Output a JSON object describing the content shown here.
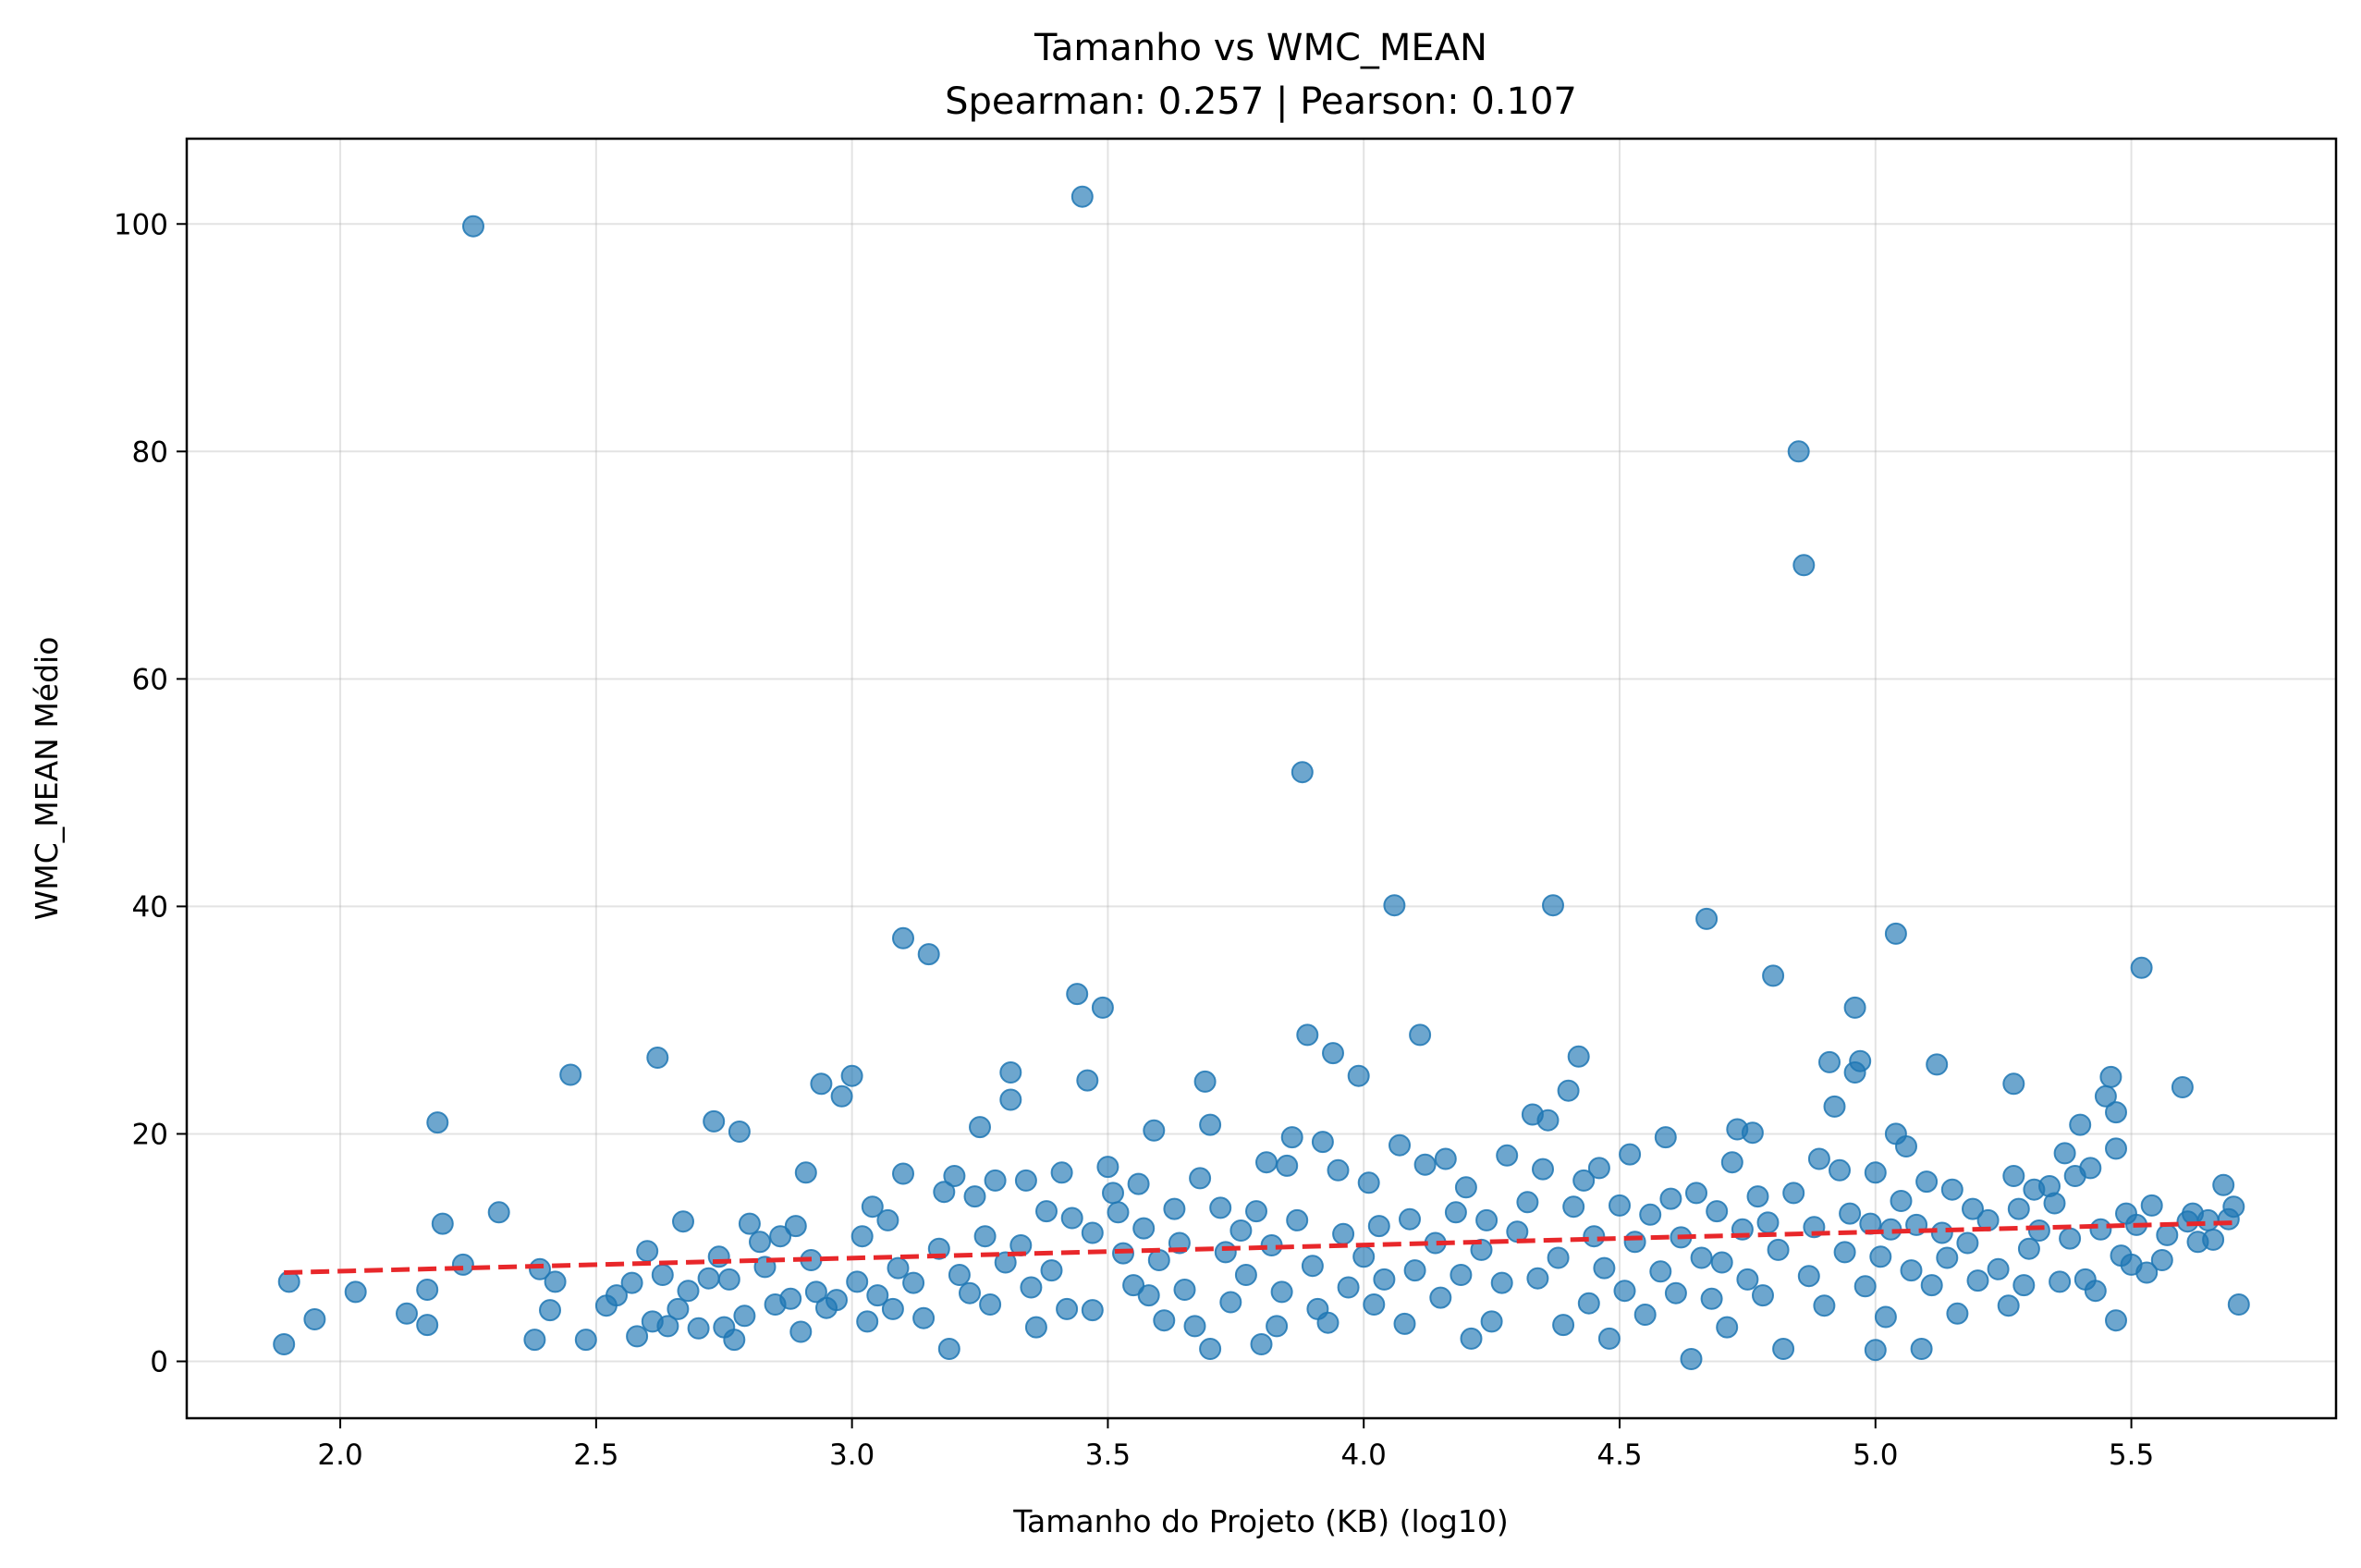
{
  "chart_data": {
    "type": "scatter",
    "title": "Tamanho vs WMC_MEAN",
    "subtitle": "Spearman: 0.257 | Pearson: 0.107",
    "xlabel": "Tamanho do Projeto (KB) (log10)",
    "ylabel": "WMC_MEAN Médio",
    "xlim": [
      1.7,
      5.9
    ],
    "ylim": [
      -5,
      107.5
    ],
    "x_ticks": [
      2.0,
      2.5,
      3.0,
      3.5,
      4.0,
      4.5,
      5.0,
      5.5
    ],
    "y_ticks": [
      0,
      20,
      40,
      60,
      80,
      100
    ],
    "x_tick_labels": [
      "2.0",
      "2.5",
      "3.0",
      "3.5",
      "4.0",
      "4.5",
      "5.0",
      "5.5"
    ],
    "y_tick_labels": [
      "0",
      "20",
      "40",
      "60",
      "80",
      "100"
    ],
    "grid": true,
    "colors": {
      "points": "#1f77b4",
      "trend": "#e8272a"
    },
    "series": [
      {
        "kind": "points",
        "points": [
          [
            1.89,
            1.5
          ],
          [
            1.9,
            7.0
          ],
          [
            1.95,
            3.7
          ],
          [
            2.03,
            6.1
          ],
          [
            2.13,
            4.2
          ],
          [
            2.17,
            3.2
          ],
          [
            2.17,
            6.3
          ],
          [
            2.19,
            21.0
          ],
          [
            2.2,
            12.1
          ],
          [
            2.24,
            8.5
          ],
          [
            2.26,
            99.8
          ],
          [
            2.31,
            13.1
          ],
          [
            2.38,
            1.9
          ],
          [
            2.39,
            8.1
          ],
          [
            2.41,
            4.5
          ],
          [
            2.42,
            7.0
          ],
          [
            2.45,
            25.2
          ],
          [
            2.48,
            1.9
          ],
          [
            2.52,
            4.9
          ],
          [
            2.54,
            5.8
          ],
          [
            2.57,
            6.9
          ],
          [
            2.58,
            2.2
          ],
          [
            2.6,
            9.7
          ],
          [
            2.61,
            3.5
          ],
          [
            2.62,
            26.7
          ],
          [
            2.63,
            7.6
          ],
          [
            2.64,
            3.1
          ],
          [
            2.66,
            4.6
          ],
          [
            2.67,
            12.3
          ],
          [
            2.68,
            6.2
          ],
          [
            2.7,
            2.9
          ],
          [
            2.72,
            7.3
          ],
          [
            2.73,
            21.1
          ],
          [
            2.74,
            9.2
          ],
          [
            2.75,
            3.0
          ],
          [
            2.76,
            7.2
          ],
          [
            2.77,
            1.9
          ],
          [
            2.78,
            20.2
          ],
          [
            2.79,
            4.0
          ],
          [
            2.8,
            12.1
          ],
          [
            2.82,
            10.5
          ],
          [
            2.83,
            8.3
          ],
          [
            2.85,
            5.0
          ],
          [
            2.86,
            11.0
          ],
          [
            2.88,
            5.5
          ],
          [
            2.89,
            11.9
          ],
          [
            2.9,
            2.6
          ],
          [
            2.91,
            16.6
          ],
          [
            2.92,
            8.9
          ],
          [
            2.93,
            6.1
          ],
          [
            2.94,
            24.4
          ],
          [
            2.95,
            4.7
          ],
          [
            2.97,
            5.4
          ],
          [
            2.98,
            23.3
          ],
          [
            3.0,
            25.1
          ],
          [
            3.01,
            7.0
          ],
          [
            3.02,
            11.0
          ],
          [
            3.03,
            3.5
          ],
          [
            3.04,
            13.6
          ],
          [
            3.05,
            5.8
          ],
          [
            3.07,
            12.4
          ],
          [
            3.08,
            4.6
          ],
          [
            3.09,
            8.2
          ],
          [
            3.1,
            37.2
          ],
          [
            3.1,
            16.5
          ],
          [
            3.12,
            6.9
          ],
          [
            3.14,
            3.8
          ],
          [
            3.15,
            35.8
          ],
          [
            3.17,
            9.9
          ],
          [
            3.18,
            14.9
          ],
          [
            3.19,
            1.1
          ],
          [
            3.2,
            16.3
          ],
          [
            3.21,
            7.6
          ],
          [
            3.23,
            6.0
          ],
          [
            3.24,
            14.5
          ],
          [
            3.25,
            20.6
          ],
          [
            3.26,
            11.0
          ],
          [
            3.27,
            5.0
          ],
          [
            3.28,
            15.9
          ],
          [
            3.3,
            8.7
          ],
          [
            3.31,
            25.4
          ],
          [
            3.31,
            23.0
          ],
          [
            3.33,
            10.2
          ],
          [
            3.34,
            15.9
          ],
          [
            3.35,
            6.5
          ],
          [
            3.36,
            3.0
          ],
          [
            3.38,
            13.2
          ],
          [
            3.39,
            8.0
          ],
          [
            3.41,
            16.6
          ],
          [
            3.42,
            4.6
          ],
          [
            3.43,
            12.6
          ],
          [
            3.44,
            32.3
          ],
          [
            3.45,
            102.4
          ],
          [
            3.46,
            24.7
          ],
          [
            3.47,
            11.3
          ],
          [
            3.47,
            4.5
          ],
          [
            3.49,
            31.1
          ],
          [
            3.5,
            17.1
          ],
          [
            3.51,
            14.8
          ],
          [
            3.52,
            13.1
          ],
          [
            3.53,
            9.5
          ],
          [
            3.55,
            6.7
          ],
          [
            3.56,
            15.6
          ],
          [
            3.57,
            11.7
          ],
          [
            3.58,
            5.8
          ],
          [
            3.59,
            20.3
          ],
          [
            3.6,
            8.9
          ],
          [
            3.61,
            3.6
          ],
          [
            3.63,
            13.4
          ],
          [
            3.64,
            10.4
          ],
          [
            3.65,
            6.3
          ],
          [
            3.67,
            3.1
          ],
          [
            3.68,
            16.1
          ],
          [
            3.69,
            24.6
          ],
          [
            3.7,
            20.8
          ],
          [
            3.7,
            1.1
          ],
          [
            3.72,
            13.5
          ],
          [
            3.73,
            9.6
          ],
          [
            3.74,
            5.2
          ],
          [
            3.76,
            11.5
          ],
          [
            3.77,
            7.6
          ],
          [
            3.79,
            13.2
          ],
          [
            3.8,
            1.5
          ],
          [
            3.81,
            17.5
          ],
          [
            3.82,
            10.2
          ],
          [
            3.83,
            3.1
          ],
          [
            3.84,
            6.1
          ],
          [
            3.85,
            17.2
          ],
          [
            3.86,
            19.7
          ],
          [
            3.87,
            12.4
          ],
          [
            3.88,
            51.8
          ],
          [
            3.89,
            28.7
          ],
          [
            3.9,
            8.4
          ],
          [
            3.91,
            4.6
          ],
          [
            3.92,
            19.3
          ],
          [
            3.93,
            3.4
          ],
          [
            3.94,
            27.1
          ],
          [
            3.95,
            16.8
          ],
          [
            3.96,
            11.2
          ],
          [
            3.97,
            6.5
          ],
          [
            3.99,
            25.1
          ],
          [
            4.0,
            9.2
          ],
          [
            4.01,
            15.7
          ],
          [
            4.02,
            5.0
          ],
          [
            4.03,
            11.9
          ],
          [
            4.04,
            7.2
          ],
          [
            4.06,
            40.1
          ],
          [
            4.07,
            19.0
          ],
          [
            4.08,
            3.3
          ],
          [
            4.09,
            12.5
          ],
          [
            4.1,
            8.0
          ],
          [
            4.11,
            28.7
          ],
          [
            4.12,
            17.3
          ],
          [
            4.14,
            10.4
          ],
          [
            4.15,
            5.6
          ],
          [
            4.16,
            17.8
          ],
          [
            4.18,
            13.1
          ],
          [
            4.19,
            7.6
          ],
          [
            4.2,
            15.3
          ],
          [
            4.21,
            2.0
          ],
          [
            4.23,
            9.8
          ],
          [
            4.24,
            12.4
          ],
          [
            4.25,
            3.5
          ],
          [
            4.27,
            6.9
          ],
          [
            4.28,
            18.1
          ],
          [
            4.3,
            11.4
          ],
          [
            4.32,
            14.0
          ],
          [
            4.33,
            21.7
          ],
          [
            4.34,
            7.3
          ],
          [
            4.35,
            16.9
          ],
          [
            4.36,
            21.2
          ],
          [
            4.37,
            40.1
          ],
          [
            4.38,
            9.1
          ],
          [
            4.39,
            3.2
          ],
          [
            4.4,
            23.8
          ],
          [
            4.41,
            13.6
          ],
          [
            4.42,
            26.8
          ],
          [
            4.43,
            15.9
          ],
          [
            4.44,
            5.1
          ],
          [
            4.45,
            11.0
          ],
          [
            4.46,
            17.0
          ],
          [
            4.47,
            8.2
          ],
          [
            4.48,
            2.0
          ],
          [
            4.5,
            13.7
          ],
          [
            4.51,
            6.2
          ],
          [
            4.52,
            18.2
          ],
          [
            4.53,
            10.5
          ],
          [
            4.55,
            4.1
          ],
          [
            4.56,
            12.9
          ],
          [
            4.58,
            7.9
          ],
          [
            4.59,
            19.7
          ],
          [
            4.6,
            14.3
          ],
          [
            4.61,
            6.0
          ],
          [
            4.62,
            10.9
          ],
          [
            4.64,
            0.2
          ],
          [
            4.65,
            14.8
          ],
          [
            4.66,
            9.1
          ],
          [
            4.67,
            38.9
          ],
          [
            4.68,
            5.5
          ],
          [
            4.69,
            13.2
          ],
          [
            4.7,
            8.7
          ],
          [
            4.71,
            3.0
          ],
          [
            4.72,
            17.5
          ],
          [
            4.73,
            20.4
          ],
          [
            4.74,
            11.6
          ],
          [
            4.75,
            7.2
          ],
          [
            4.76,
            20.1
          ],
          [
            4.77,
            14.5
          ],
          [
            4.78,
            5.8
          ],
          [
            4.79,
            12.2
          ],
          [
            4.8,
            33.9
          ],
          [
            4.81,
            9.8
          ],
          [
            4.82,
            1.1
          ],
          [
            4.84,
            14.8
          ],
          [
            4.85,
            80.0
          ],
          [
            4.86,
            70.0
          ],
          [
            4.87,
            7.5
          ],
          [
            4.88,
            11.8
          ],
          [
            4.89,
            17.8
          ],
          [
            4.9,
            4.9
          ],
          [
            4.91,
            26.3
          ],
          [
            4.92,
            22.4
          ],
          [
            4.93,
            16.8
          ],
          [
            4.94,
            9.6
          ],
          [
            4.95,
            13.0
          ],
          [
            4.96,
            25.4
          ],
          [
            4.96,
            31.1
          ],
          [
            4.97,
            26.4
          ],
          [
            4.98,
            6.6
          ],
          [
            4.99,
            12.1
          ],
          [
            5.0,
            16.6
          ],
          [
            5.0,
            1.0
          ],
          [
            5.01,
            9.2
          ],
          [
            5.02,
            3.9
          ],
          [
            5.03,
            11.6
          ],
          [
            5.04,
            37.6
          ],
          [
            5.04,
            20.0
          ],
          [
            5.05,
            14.1
          ],
          [
            5.06,
            18.9
          ],
          [
            5.07,
            8.0
          ],
          [
            5.08,
            12.0
          ],
          [
            5.09,
            1.1
          ],
          [
            5.1,
            15.8
          ],
          [
            5.11,
            6.7
          ],
          [
            5.12,
            26.1
          ],
          [
            5.13,
            11.3
          ],
          [
            5.14,
            9.1
          ],
          [
            5.15,
            15.1
          ],
          [
            5.16,
            4.2
          ],
          [
            5.18,
            10.4
          ],
          [
            5.19,
            13.4
          ],
          [
            5.2,
            7.1
          ],
          [
            5.22,
            12.4
          ],
          [
            5.24,
            8.1
          ],
          [
            5.26,
            4.9
          ],
          [
            5.27,
            16.3
          ],
          [
            5.27,
            24.4
          ],
          [
            5.28,
            13.4
          ],
          [
            5.29,
            6.7
          ],
          [
            5.3,
            9.9
          ],
          [
            5.31,
            15.1
          ],
          [
            5.32,
            11.5
          ],
          [
            5.34,
            15.4
          ],
          [
            5.35,
            13.9
          ],
          [
            5.36,
            7.0
          ],
          [
            5.37,
            18.3
          ],
          [
            5.38,
            10.8
          ],
          [
            5.39,
            16.3
          ],
          [
            5.4,
            20.8
          ],
          [
            5.41,
            7.2
          ],
          [
            5.42,
            17.0
          ],
          [
            5.43,
            6.2
          ],
          [
            5.44,
            11.6
          ],
          [
            5.45,
            23.3
          ],
          [
            5.46,
            25.0
          ],
          [
            5.47,
            18.7
          ],
          [
            5.47,
            21.9
          ],
          [
            5.47,
            3.6
          ],
          [
            5.48,
            9.3
          ],
          [
            5.49,
            13.0
          ],
          [
            5.5,
            8.5
          ],
          [
            5.51,
            12.0
          ],
          [
            5.52,
            34.6
          ],
          [
            5.53,
            7.8
          ],
          [
            5.54,
            13.7
          ],
          [
            5.56,
            8.9
          ],
          [
            5.57,
            11.1
          ],
          [
            5.6,
            24.1
          ],
          [
            5.61,
            12.3
          ],
          [
            5.62,
            13.0
          ],
          [
            5.63,
            10.5
          ],
          [
            5.65,
            12.4
          ],
          [
            5.66,
            10.7
          ],
          [
            5.68,
            15.5
          ],
          [
            5.69,
            12.5
          ],
          [
            5.7,
            13.6
          ],
          [
            5.71,
            5.0
          ]
        ]
      },
      {
        "kind": "trend",
        "style": "dashed",
        "points": [
          [
            1.89,
            7.8
          ],
          [
            5.71,
            12.2
          ]
        ]
      }
    ]
  }
}
